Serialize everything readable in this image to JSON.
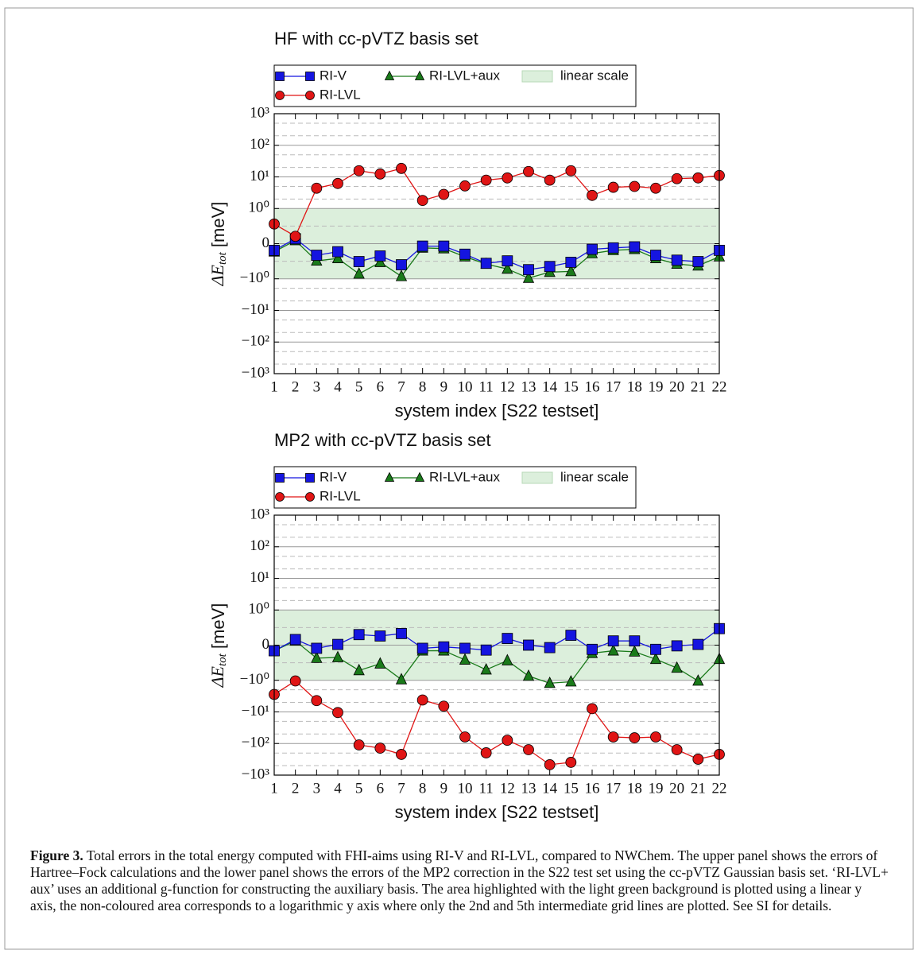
{
  "chart_data": [
    {
      "type": "line",
      "title": "HF with cc-pVTZ basis set",
      "xlabel": "system index [S22 testset]",
      "ylabel": {
        "symbol": "ΔE",
        "subscript": "tot",
        "unit": " [meV]"
      },
      "x": [
        1,
        2,
        3,
        4,
        5,
        6,
        7,
        8,
        9,
        10,
        11,
        12,
        13,
        14,
        15,
        16,
        17,
        18,
        19,
        20,
        21,
        22
      ],
      "xlim": [
        1,
        22
      ],
      "xticks": [
        1,
        2,
        3,
        4,
        5,
        6,
        7,
        8,
        9,
        10,
        11,
        12,
        13,
        14,
        15,
        16,
        17,
        18,
        19,
        20,
        21,
        22
      ],
      "yscale": "symlog",
      "linthresh": 1,
      "linscale": 1,
      "ylim": [
        -1000,
        1000
      ],
      "yticks": [
        {
          "value": -1000,
          "label": "−10³"
        },
        {
          "value": -100,
          "label": "−10²"
        },
        {
          "value": -10,
          "label": "−10¹"
        },
        {
          "value": -1,
          "label": "−10⁰"
        },
        0,
        {
          "value": 1,
          "label": "10⁰"
        },
        {
          "value": 10,
          "label": "10¹"
        },
        {
          "value": 100,
          "label": "10²"
        },
        {
          "value": 1000,
          "label": "10³"
        }
      ],
      "minor_grid": [
        -500,
        -200,
        -50,
        -20,
        -5,
        -2,
        -0.5,
        0.5,
        2,
        5,
        20,
        50,
        200,
        500
      ],
      "grid": true,
      "shaded_span": {
        "name": "linear scale",
        "color": "#dcefdc",
        "range": [
          -1,
          1
        ]
      },
      "series": [
        {
          "name": "RI-V",
          "color": "#1515e0",
          "marker": "square",
          "values": [
            -0.19,
            0.14,
            -0.33,
            -0.23,
            -0.51,
            -0.35,
            -0.6,
            -0.07,
            -0.07,
            -0.3,
            -0.56,
            -0.49,
            -0.74,
            -0.65,
            -0.53,
            -0.16,
            -0.12,
            -0.09,
            -0.33,
            -0.47,
            -0.51,
            -0.19
          ]
        },
        {
          "name": "RI-LVL",
          "color": "#e01515",
          "marker": "circle",
          "values": [
            0.56,
            0.21,
            4.4,
            6.2,
            15.7,
            12.4,
            18.6,
            1.8,
            2.8,
            5.2,
            7.9,
            9.3,
            14.8,
            7.9,
            15.7,
            2.6,
            4.7,
            5.0,
            4.4,
            8.8,
            9.3,
            11.1
          ]
        },
        {
          "name": "RI-LVL+aux",
          "color": "#1a7a1a",
          "marker": "triangle",
          "values": [
            -0.23,
            0.09,
            -0.49,
            -0.42,
            -0.86,
            -0.53,
            -0.93,
            -0.12,
            -0.14,
            -0.37,
            -0.58,
            -0.72,
            -0.98,
            -0.81,
            -0.79,
            -0.28,
            -0.19,
            -0.16,
            -0.42,
            -0.58,
            -0.63,
            -0.37
          ]
        }
      ]
    },
    {
      "type": "line",
      "title": "MP2 with cc-pVTZ basis set",
      "xlabel": "system index [S22 testset]",
      "ylabel": {
        "symbol": "ΔE",
        "subscript": "tot",
        "unit": " [meV]"
      },
      "x": [
        1,
        2,
        3,
        4,
        5,
        6,
        7,
        8,
        9,
        10,
        11,
        12,
        13,
        14,
        15,
        16,
        17,
        18,
        19,
        20,
        21,
        22
      ],
      "xlim": [
        1,
        22
      ],
      "xticks": [
        1,
        2,
        3,
        4,
        5,
        6,
        7,
        8,
        9,
        10,
        11,
        12,
        13,
        14,
        15,
        16,
        17,
        18,
        19,
        20,
        21,
        22
      ],
      "yscale": "symlog",
      "linthresh": 1,
      "linscale": 1,
      "ylim": [
        -1000,
        1000
      ],
      "yticks": [
        {
          "value": -1000,
          "label": "−10³"
        },
        {
          "value": -100,
          "label": "−10²"
        },
        {
          "value": -10,
          "label": "−10¹"
        },
        {
          "value": -1,
          "label": "−10⁰"
        },
        0,
        {
          "value": 1,
          "label": "10⁰"
        },
        {
          "value": 10,
          "label": "10¹"
        },
        {
          "value": 100,
          "label": "10²"
        },
        {
          "value": 1000,
          "label": "10³"
        }
      ],
      "minor_grid": [
        -500,
        -200,
        -50,
        -20,
        -5,
        -2,
        -0.5,
        0.5,
        2,
        5,
        20,
        50,
        200,
        500
      ],
      "grid": true,
      "shaded_span": {
        "name": "linear scale",
        "color": "#dcefdc",
        "range": [
          -1,
          1
        ]
      },
      "series": [
        {
          "name": "RI-V",
          "color": "#1515e0",
          "marker": "square",
          "values": [
            -0.16,
            0.16,
            -0.09,
            0.02,
            0.3,
            0.26,
            0.33,
            -0.09,
            -0.05,
            -0.09,
            -0.14,
            0.19,
            0,
            -0.07,
            0.28,
            -0.12,
            0.12,
            0.12,
            -0.12,
            -0.02,
            0.02,
            0.47
          ]
        },
        {
          "name": "RI-LVL",
          "color": "#e01515",
          "marker": "circle",
          "values": [
            -2.8,
            -1.05,
            -4.4,
            -10.5,
            -111,
            -140,
            -221,
            -4.2,
            -6.6,
            -62,
            -197,
            -79,
            -157,
            -468,
            -394,
            -7.9,
            -62,
            -66,
            -62,
            -157,
            -313,
            -221
          ]
        },
        {
          "name": "RI-LVL+aux",
          "color": "#1a7a1a",
          "marker": "triangle",
          "values": [
            -0.16,
            0.12,
            -0.37,
            -0.35,
            -0.72,
            -0.53,
            -0.98,
            -0.16,
            -0.16,
            -0.42,
            -0.7,
            -0.44,
            -0.88,
            -1.24,
            -1.11,
            -0.23,
            -0.16,
            -0.19,
            -0.4,
            -0.65,
            -1.05,
            -0.4
          ]
        }
      ]
    }
  ],
  "caption": {
    "label": "Figure 3.",
    "text": "Total errors in the total energy computed with FHI-aims using RI-V and RI-LVL, compared to NWChem. The upper panel shows the errors of Hartree–Fock calculations and the lower panel shows the errors of the MP2 correction in the S22 test set using the cc-pVTZ Gaussian basis set. ‘RI-LVL+ aux’ uses an additional g-function for constructing the auxiliary basis. The area highlighted with the light green background is plotted using a linear y axis, the non-coloured area corresponds to a logarithmic y axis where only the 2nd and 5th intermediate grid lines are plotted. See SI for details."
  }
}
